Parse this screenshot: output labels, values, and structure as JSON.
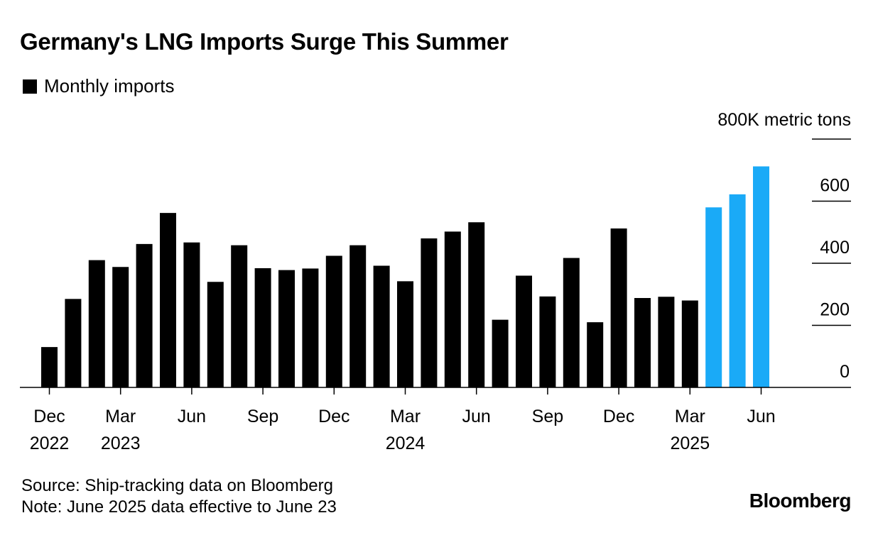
{
  "title": "Germany's LNG Imports Surge This Summer",
  "legend": {
    "label": "Monthly imports",
    "color": "#000000"
  },
  "source": "Source: Ship-tracking data on Bloomberg",
  "note": "Note: June 2025 data effective to June 23",
  "brand": "Bloomberg",
  "chart_data": {
    "type": "bar",
    "unit_label": "800K metric tons",
    "ylim": [
      0,
      800
    ],
    "y_ticks": [
      0,
      200,
      400,
      600,
      800
    ],
    "y_tick_labels": [
      "0",
      "200",
      "400",
      "600",
      ""
    ],
    "y_axis_side": "right",
    "grid": false,
    "legend_placement": "top-left",
    "categories": [
      "Dec 2022",
      "Jan 2023",
      "Feb 2023",
      "Mar 2023",
      "Apr 2023",
      "May 2023",
      "Jun 2023",
      "Jul 2023",
      "Aug 2023",
      "Sep 2023",
      "Oct 2023",
      "Nov 2023",
      "Dec 2023",
      "Jan 2024",
      "Feb 2024",
      "Mar 2024",
      "Apr 2024",
      "May 2024",
      "Jun 2024",
      "Jul 2024",
      "Aug 2024",
      "Sep 2024",
      "Oct 2024",
      "Nov 2024",
      "Dec 2024",
      "Jan 2025",
      "Feb 2025",
      "Mar 2025",
      "Apr 2025",
      "May 2025",
      "Jun 2025"
    ],
    "values": [
      130,
      285,
      410,
      388,
      462,
      562,
      467,
      340,
      458,
      384,
      378,
      383,
      424,
      458,
      392,
      342,
      480,
      502,
      532,
      218,
      360,
      293,
      417,
      210,
      512,
      288,
      292,
      280,
      580,
      622,
      712
    ],
    "bar_colors": [
      "#000000",
      "#000000",
      "#000000",
      "#000000",
      "#000000",
      "#000000",
      "#000000",
      "#000000",
      "#000000",
      "#000000",
      "#000000",
      "#000000",
      "#000000",
      "#000000",
      "#000000",
      "#000000",
      "#000000",
      "#000000",
      "#000000",
      "#000000",
      "#000000",
      "#000000",
      "#000000",
      "#000000",
      "#000000",
      "#000000",
      "#000000",
      "#000000",
      "#1aaaf7",
      "#1aaaf7",
      "#1aaaf7"
    ],
    "x_ticks": [
      {
        "index": 0,
        "line1": "Dec",
        "line2": "2022"
      },
      {
        "index": 3,
        "line1": "Mar",
        "line2": "2023"
      },
      {
        "index": 6,
        "line1": "Jun",
        "line2": ""
      },
      {
        "index": 9,
        "line1": "Sep",
        "line2": ""
      },
      {
        "index": 12,
        "line1": "Dec",
        "line2": ""
      },
      {
        "index": 15,
        "line1": "Mar",
        "line2": "2024"
      },
      {
        "index": 18,
        "line1": "Jun",
        "line2": ""
      },
      {
        "index": 21,
        "line1": "Sep",
        "line2": ""
      },
      {
        "index": 24,
        "line1": "Dec",
        "line2": ""
      },
      {
        "index": 27,
        "line1": "Mar",
        "line2": "2025"
      },
      {
        "index": 30,
        "line1": "Jun",
        "line2": ""
      }
    ]
  }
}
